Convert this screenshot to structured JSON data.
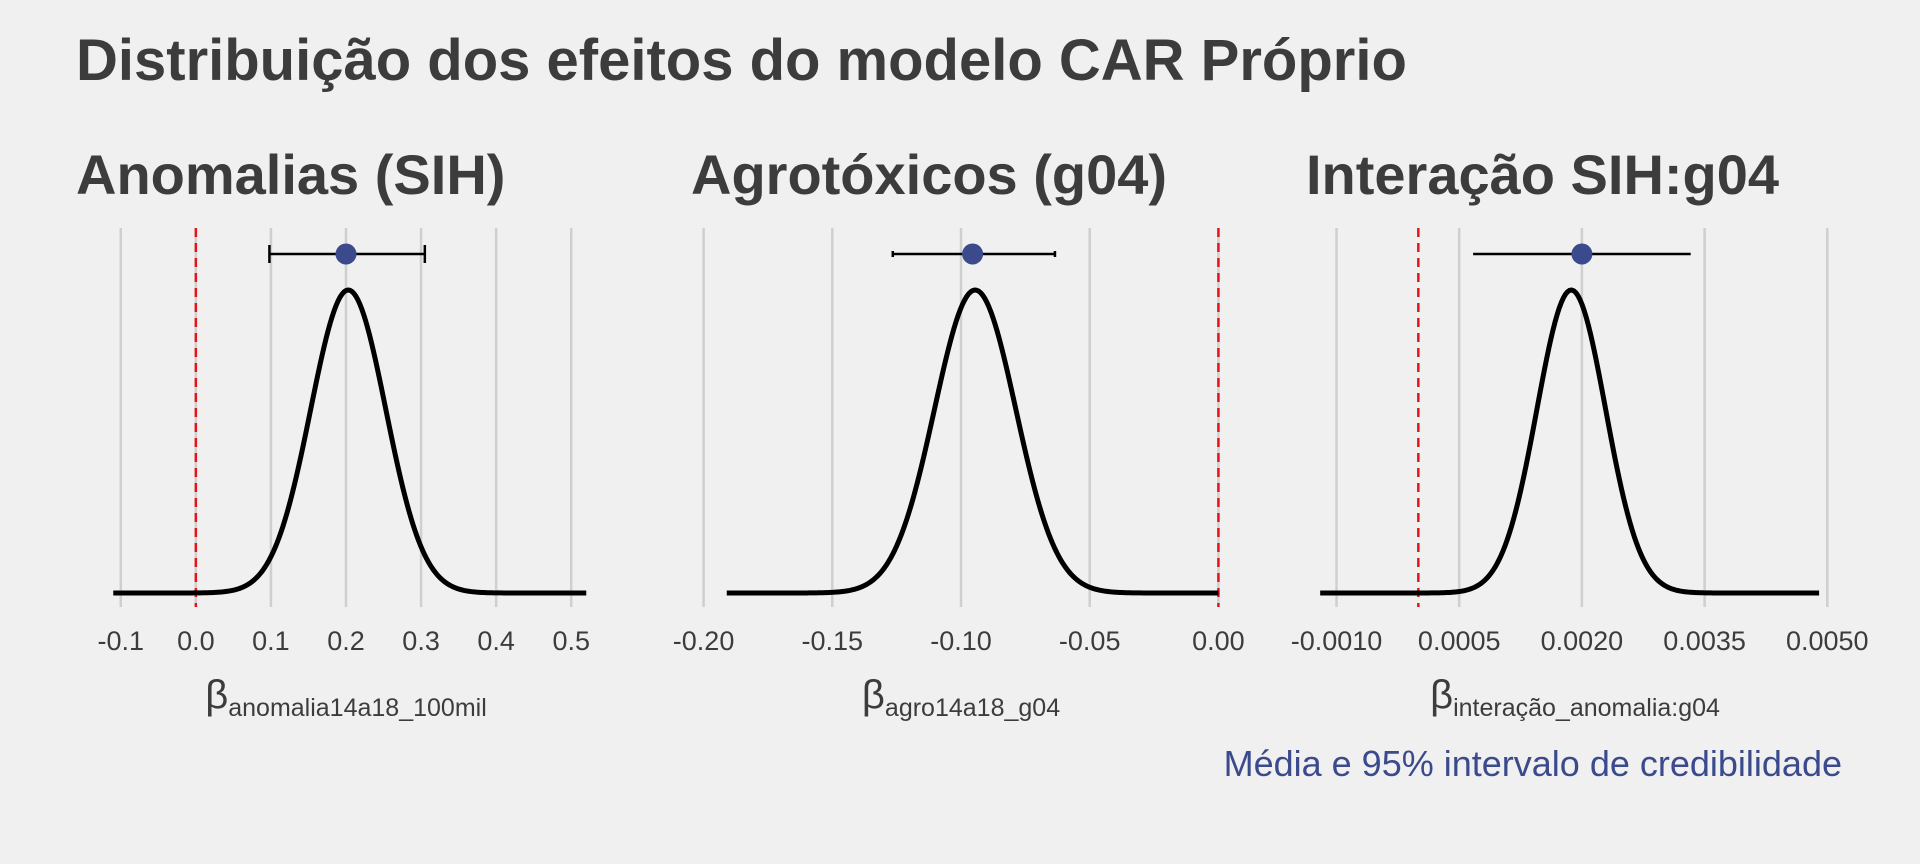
{
  "title": "Distribuição dos efeitos do modelo CAR Próprio",
  "caption": "Média e 95% intervalo de credibilidade",
  "colors": {
    "background": "#f0f0f0",
    "text": "#3c3c3c",
    "grid": "#cfcfcf",
    "curve": "#000000",
    "reference_line": "#e8141c",
    "point": "#3b4a8c",
    "caption": "#3b4a8c"
  },
  "chart_data": [
    {
      "type": "line",
      "title": "Anomalias (SIH)",
      "xlabel": {
        "symbol": "β",
        "subscript": "anomalia14a18_100mil"
      },
      "xlim": [
        -0.125,
        0.525
      ],
      "xticks": [
        -0.1,
        0.0,
        0.1,
        0.2,
        0.3,
        0.4,
        0.5
      ],
      "xtick_labels": [
        "-0.1",
        "0.0",
        "0.1",
        "0.2",
        "0.3",
        "0.4",
        "0.5"
      ],
      "reference_line_x": 0.0,
      "density": {
        "mean": 0.203,
        "sd": 0.05,
        "x_range": [
          -0.11,
          0.52
        ]
      },
      "summary": {
        "mean": 0.2,
        "lower": 0.098,
        "upper": 0.305
      },
      "grid": "vertical"
    },
    {
      "type": "line",
      "title": "Agrotóxicos (g04)",
      "xlabel": {
        "symbol": "β",
        "subscript": "agro14a18_g04"
      },
      "xlim": [
        -0.2045,
        0.0045
      ],
      "xticks": [
        -0.2,
        -0.15,
        -0.1,
        -0.05,
        0.0
      ],
      "xtick_labels": [
        "-0.20",
        "-0.15",
        "-0.10",
        "-0.05",
        "0.00"
      ],
      "reference_line_x": 0.0,
      "density": {
        "mean": -0.0945,
        "sd": 0.0158,
        "x_range": [
          -0.191,
          0.0
        ]
      },
      "summary": {
        "mean": -0.0955,
        "lower": -0.1265,
        "upper": -0.0635
      },
      "grid": "vertical"
    },
    {
      "type": "line",
      "title": "Interação SIH:g04",
      "xlabel": {
        "symbol": "β",
        "subscript": "interação_anomalia:g04"
      },
      "xlim": [
        -0.0013,
        0.00518
      ],
      "xticks": [
        -0.001,
        0.0005,
        0.002,
        0.0035,
        0.005
      ],
      "xtick_labels": [
        "-0.0010",
        "0.0005",
        "0.0020",
        "0.0035",
        "0.0050"
      ],
      "reference_line_x": 0.0,
      "density": {
        "mean": 0.00187,
        "sd": 0.00042,
        "x_range": [
          -0.0012,
          0.0049
        ]
      },
      "summary": {
        "mean": 0.002,
        "lower": 0.00067,
        "upper": 0.00333
      },
      "grid": "vertical"
    }
  ]
}
